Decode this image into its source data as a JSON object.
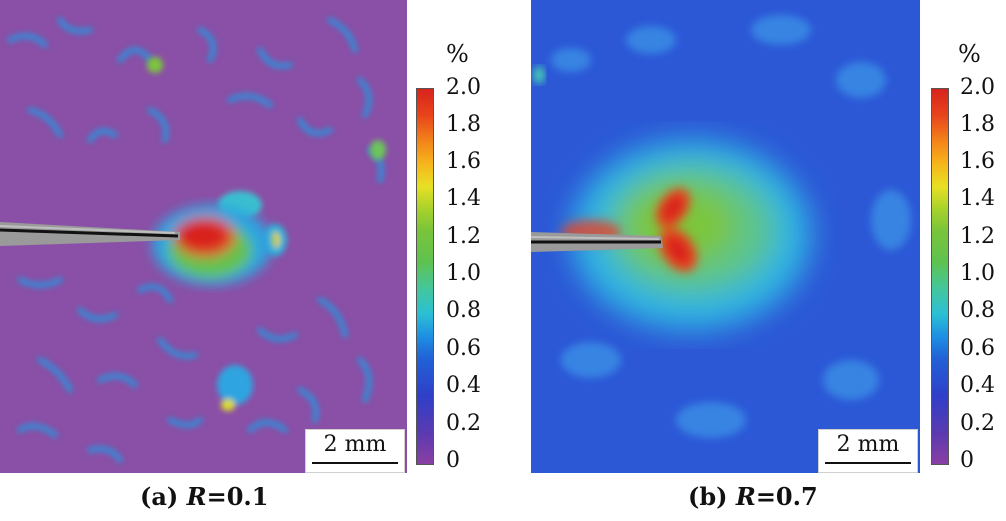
{
  "panels": [
    {
      "id": "a",
      "caption_prefix": "(a) ",
      "caption_var": "R",
      "caption_value": "=0.1",
      "scale_bar": "2 mm",
      "colorbar": {
        "unit": "%",
        "ticks": [
          "2.0",
          "1.8",
          "1.6",
          "1.4",
          "1.2",
          "1.0",
          "0.8",
          "0.6",
          "0.4",
          "0.2",
          "0"
        ]
      },
      "background_color": "#8a4fa6"
    },
    {
      "id": "b",
      "caption_prefix": "(b) ",
      "caption_var": "R",
      "caption_value": "=0.7",
      "scale_bar": "2 mm",
      "colorbar": {
        "unit": "%",
        "ticks": [
          "2.0",
          "1.8",
          "1.6",
          "1.4",
          "1.2",
          "1.0",
          "0.8",
          "0.6",
          "0.4",
          "0.2",
          "0"
        ]
      },
      "background_color": "#2c58d6"
    }
  ]
}
